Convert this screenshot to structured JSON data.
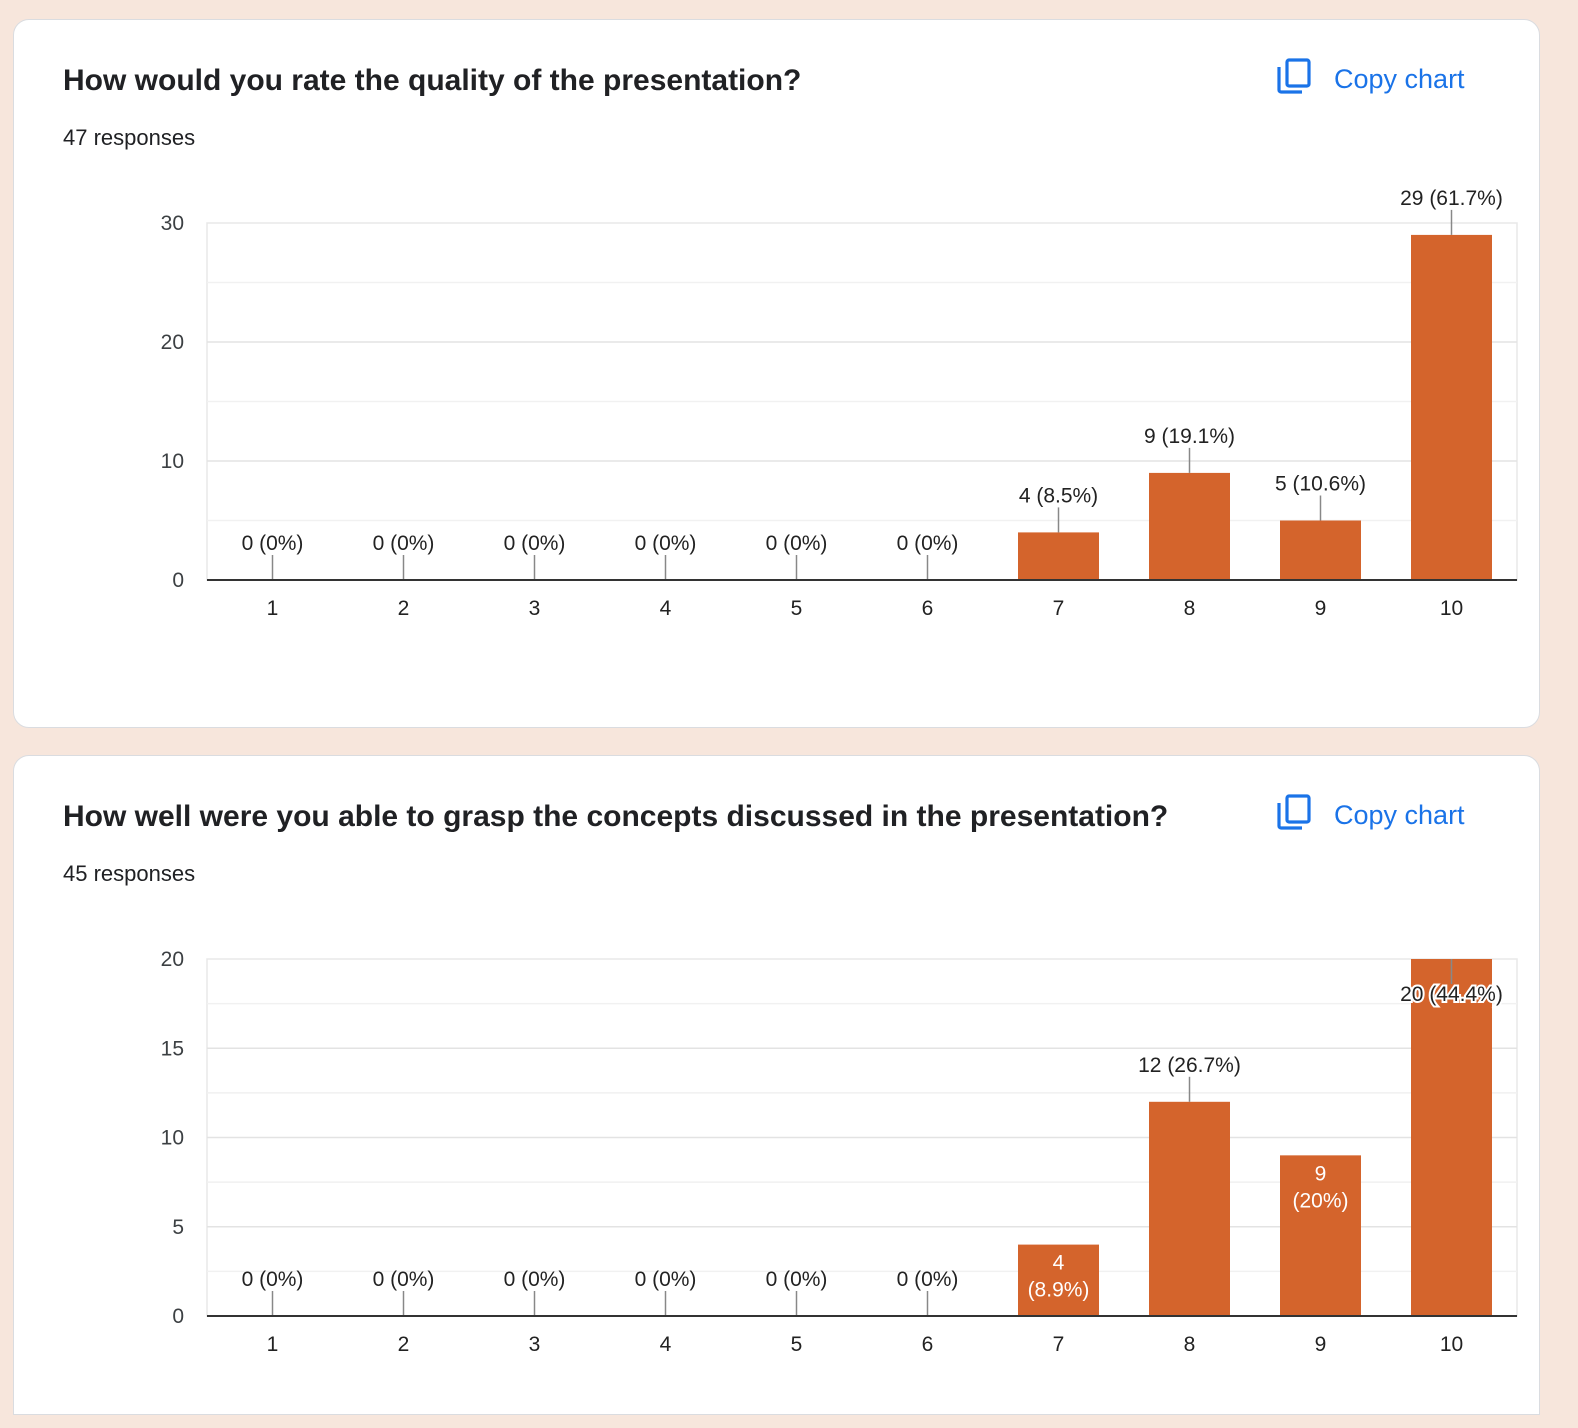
{
  "copy_label": "Copy chart",
  "colors": {
    "bar": "#d4642c",
    "accent": "#1a73e8",
    "background": "#f7e6dc"
  },
  "charts": [
    {
      "title": "How would you rate the quality of the presentation?",
      "responses": "47 responses"
    },
    {
      "title": "How well were you able to grasp the concepts discussed in the presentation?",
      "responses": "45 responses"
    }
  ],
  "chart_data": [
    {
      "type": "bar",
      "title": "How would you rate the quality of the presentation?",
      "categories": [
        "1",
        "2",
        "3",
        "4",
        "5",
        "6",
        "7",
        "8",
        "9",
        "10"
      ],
      "values": [
        0,
        0,
        0,
        0,
        0,
        0,
        4,
        9,
        5,
        29
      ],
      "labels": [
        "0 (0%)",
        "0 (0%)",
        "0 (0%)",
        "0 (0%)",
        "0 (0%)",
        "0 (0%)",
        "4 (8.5%)",
        "9 (19.1%)",
        "5 (10.6%)",
        "29 (61.7%)"
      ],
      "yticks": [
        0,
        10,
        20,
        30
      ],
      "ylim": [
        0,
        30
      ],
      "grid": true
    },
    {
      "type": "bar",
      "title": "How well were you able to grasp the concepts discussed in the presentation?",
      "categories": [
        "1",
        "2",
        "3",
        "4",
        "5",
        "6",
        "7",
        "8",
        "9",
        "10"
      ],
      "values": [
        0,
        0,
        0,
        0,
        0,
        0,
        4,
        12,
        9,
        20
      ],
      "labels": [
        "0 (0%)",
        "0 (0%)",
        "0 (0%)",
        "0 (0%)",
        "0 (0%)",
        "0 (0%)",
        "4 (8.9%)",
        "12 (26.7%)",
        "9 (20%)",
        "20 (44.4%)"
      ],
      "yticks": [
        0,
        5,
        10,
        15,
        20
      ],
      "ylim": [
        0,
        20
      ],
      "grid": true
    }
  ]
}
